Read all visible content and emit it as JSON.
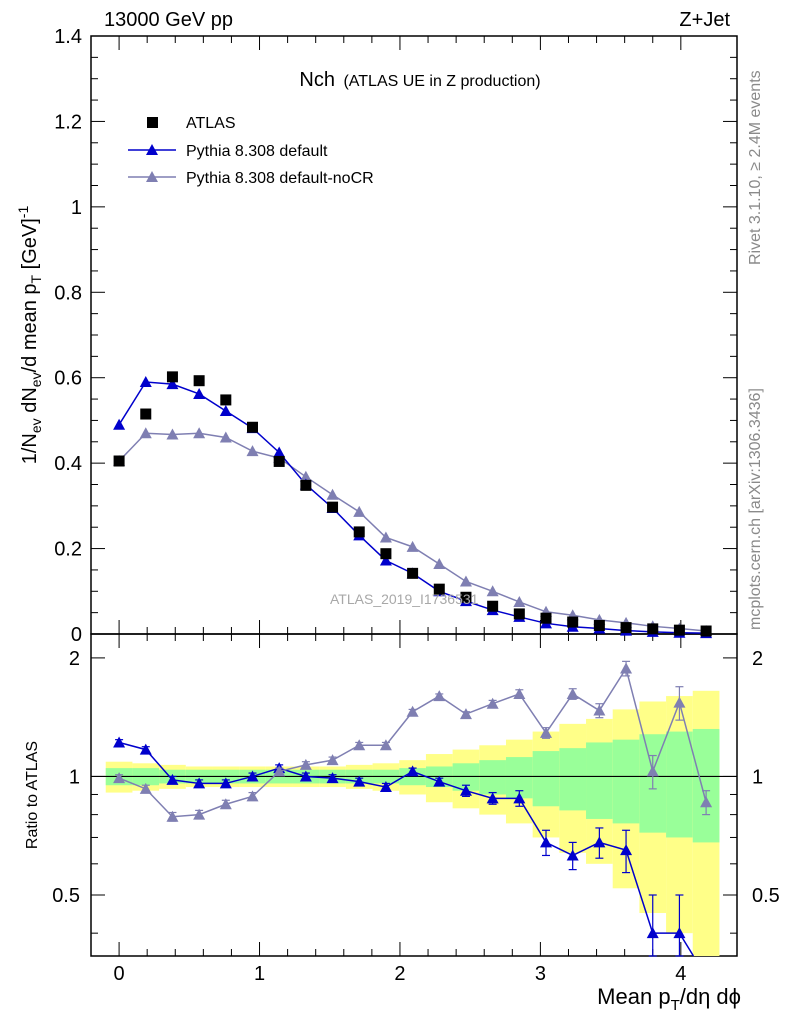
{
  "header": {
    "left": "13000 GeV pp",
    "right": "Z+Jet"
  },
  "plot": {
    "title_main": "Nch",
    "title_sub": "(ATLAS UE in Z production)",
    "watermark": "ATLAS_2019_I1736531",
    "side_rivet": "Rivet 3.1.10, ≥ 2.4M events",
    "side_mcplots": "mcplots.cern.ch [arXiv:1306.3436]",
    "ratio_ylabel": "Ratio to ATLAS"
  },
  "colors": {
    "data": "#000000",
    "default": "#0000cc",
    "nocr": "#7f7fb2",
    "band_inner": "#99ff99",
    "band_outer": "#ffff88"
  },
  "chart_data": {
    "type": "scatter",
    "xlabel": "Mean pT/dη dϕ",
    "ylabel": "1/Nev dNev/d mean pT [GeV]^-1",
    "xlim": [
      -0.2,
      4.4
    ],
    "ylim": [
      0,
      1.4
    ],
    "ratio_ylim": [
      0.35,
      2.3
    ],
    "x_ticks": [
      "0",
      "1",
      "2",
      "3",
      "4"
    ],
    "y_ticks": [
      "0",
      "0.2",
      "0.4",
      "0.6",
      "0.8",
      "1",
      "1.2",
      "1.4"
    ],
    "ratio_ticks": [
      "0.5",
      "1",
      "2"
    ],
    "legend": [
      "ATLAS",
      "Pythia 8.308 default",
      "Pythia 8.308 default-noCR"
    ],
    "legend_position": "top-left",
    "x": [
      0.0,
      0.19,
      0.38,
      0.57,
      0.76,
      0.95,
      1.14,
      1.33,
      1.52,
      1.71,
      1.9,
      2.09,
      2.28,
      2.47,
      2.66,
      2.85,
      3.04,
      3.23,
      3.42,
      3.61,
      3.8,
      3.99,
      4.18
    ],
    "series": [
      {
        "name": "ATLAS",
        "values": [
          0.405,
          0.515,
          0.602,
          0.593,
          0.548,
          0.484,
          0.404,
          0.348,
          0.297,
          0.239,
          0.188,
          0.142,
          0.105,
          0.086,
          0.065,
          0.047,
          0.037,
          0.028,
          0.02,
          0.015,
          0.012,
          0.009,
          0.007
        ]
      },
      {
        "name": "Pythia 8.308 default",
        "values": [
          0.49,
          0.59,
          0.585,
          0.562,
          0.522,
          0.482,
          0.425,
          0.35,
          0.295,
          0.231,
          0.172,
          0.142,
          0.1,
          0.077,
          0.056,
          0.04,
          0.025,
          0.017,
          0.013,
          0.008,
          0.005,
          0.003,
          0.002
        ]
      },
      {
        "name": "Pythia 8.308 default-noCR",
        "values": [
          0.405,
          0.47,
          0.467,
          0.47,
          0.46,
          0.428,
          0.412,
          0.368,
          0.326,
          0.286,
          0.226,
          0.204,
          0.164,
          0.123,
          0.1,
          0.075,
          0.052,
          0.044,
          0.033,
          0.026,
          0.018,
          0.013,
          0.007
        ]
      }
    ],
    "ratio_series": [
      {
        "name": "Pythia 8.308 default",
        "values": [
          1.22,
          1.17,
          0.98,
          0.96,
          0.96,
          1.0,
          1.05,
          1.0,
          0.99,
          0.97,
          0.94,
          1.03,
          0.97,
          0.92,
          0.88,
          0.88,
          0.68,
          0.63,
          0.68,
          0.65,
          0.4,
          0.4,
          null
        ],
        "errors": [
          0.02,
          0.02,
          0.02,
          0.02,
          0.02,
          0.02,
          0.02,
          0.02,
          0.02,
          0.02,
          0.02,
          0.02,
          0.02,
          0.03,
          0.03,
          0.04,
          0.05,
          0.05,
          0.06,
          0.08,
          0.1,
          0.1,
          null
        ]
      },
      {
        "name": "Pythia 8.308 default-noCR",
        "values": [
          0.99,
          0.93,
          0.79,
          0.8,
          0.85,
          0.89,
          1.03,
          1.07,
          1.1,
          1.2,
          1.2,
          1.46,
          1.6,
          1.44,
          1.53,
          1.62,
          1.29,
          1.62,
          1.47,
          1.88,
          1.03,
          1.54,
          0.86
        ],
        "errors": [
          0.02,
          0.02,
          0.02,
          0.02,
          0.02,
          0.02,
          0.02,
          0.02,
          0.02,
          0.02,
          0.02,
          0.02,
          0.02,
          0.02,
          0.03,
          0.04,
          0.04,
          0.05,
          0.06,
          0.08,
          0.1,
          0.15,
          0.06
        ]
      }
    ],
    "band_inner": [
      0.05,
      0.05,
      0.04,
      0.04,
      0.04,
      0.04,
      0.04,
      0.04,
      0.04,
      0.04,
      0.04,
      0.05,
      0.06,
      0.08,
      0.1,
      0.12,
      0.16,
      0.18,
      0.22,
      0.24,
      0.28,
      0.3,
      0.32
    ],
    "band_outer": [
      0.09,
      0.08,
      0.07,
      0.06,
      0.06,
      0.06,
      0.06,
      0.06,
      0.06,
      0.07,
      0.08,
      0.1,
      0.14,
      0.17,
      0.2,
      0.24,
      0.3,
      0.36,
      0.4,
      0.48,
      0.55,
      0.6,
      0.65
    ]
  }
}
